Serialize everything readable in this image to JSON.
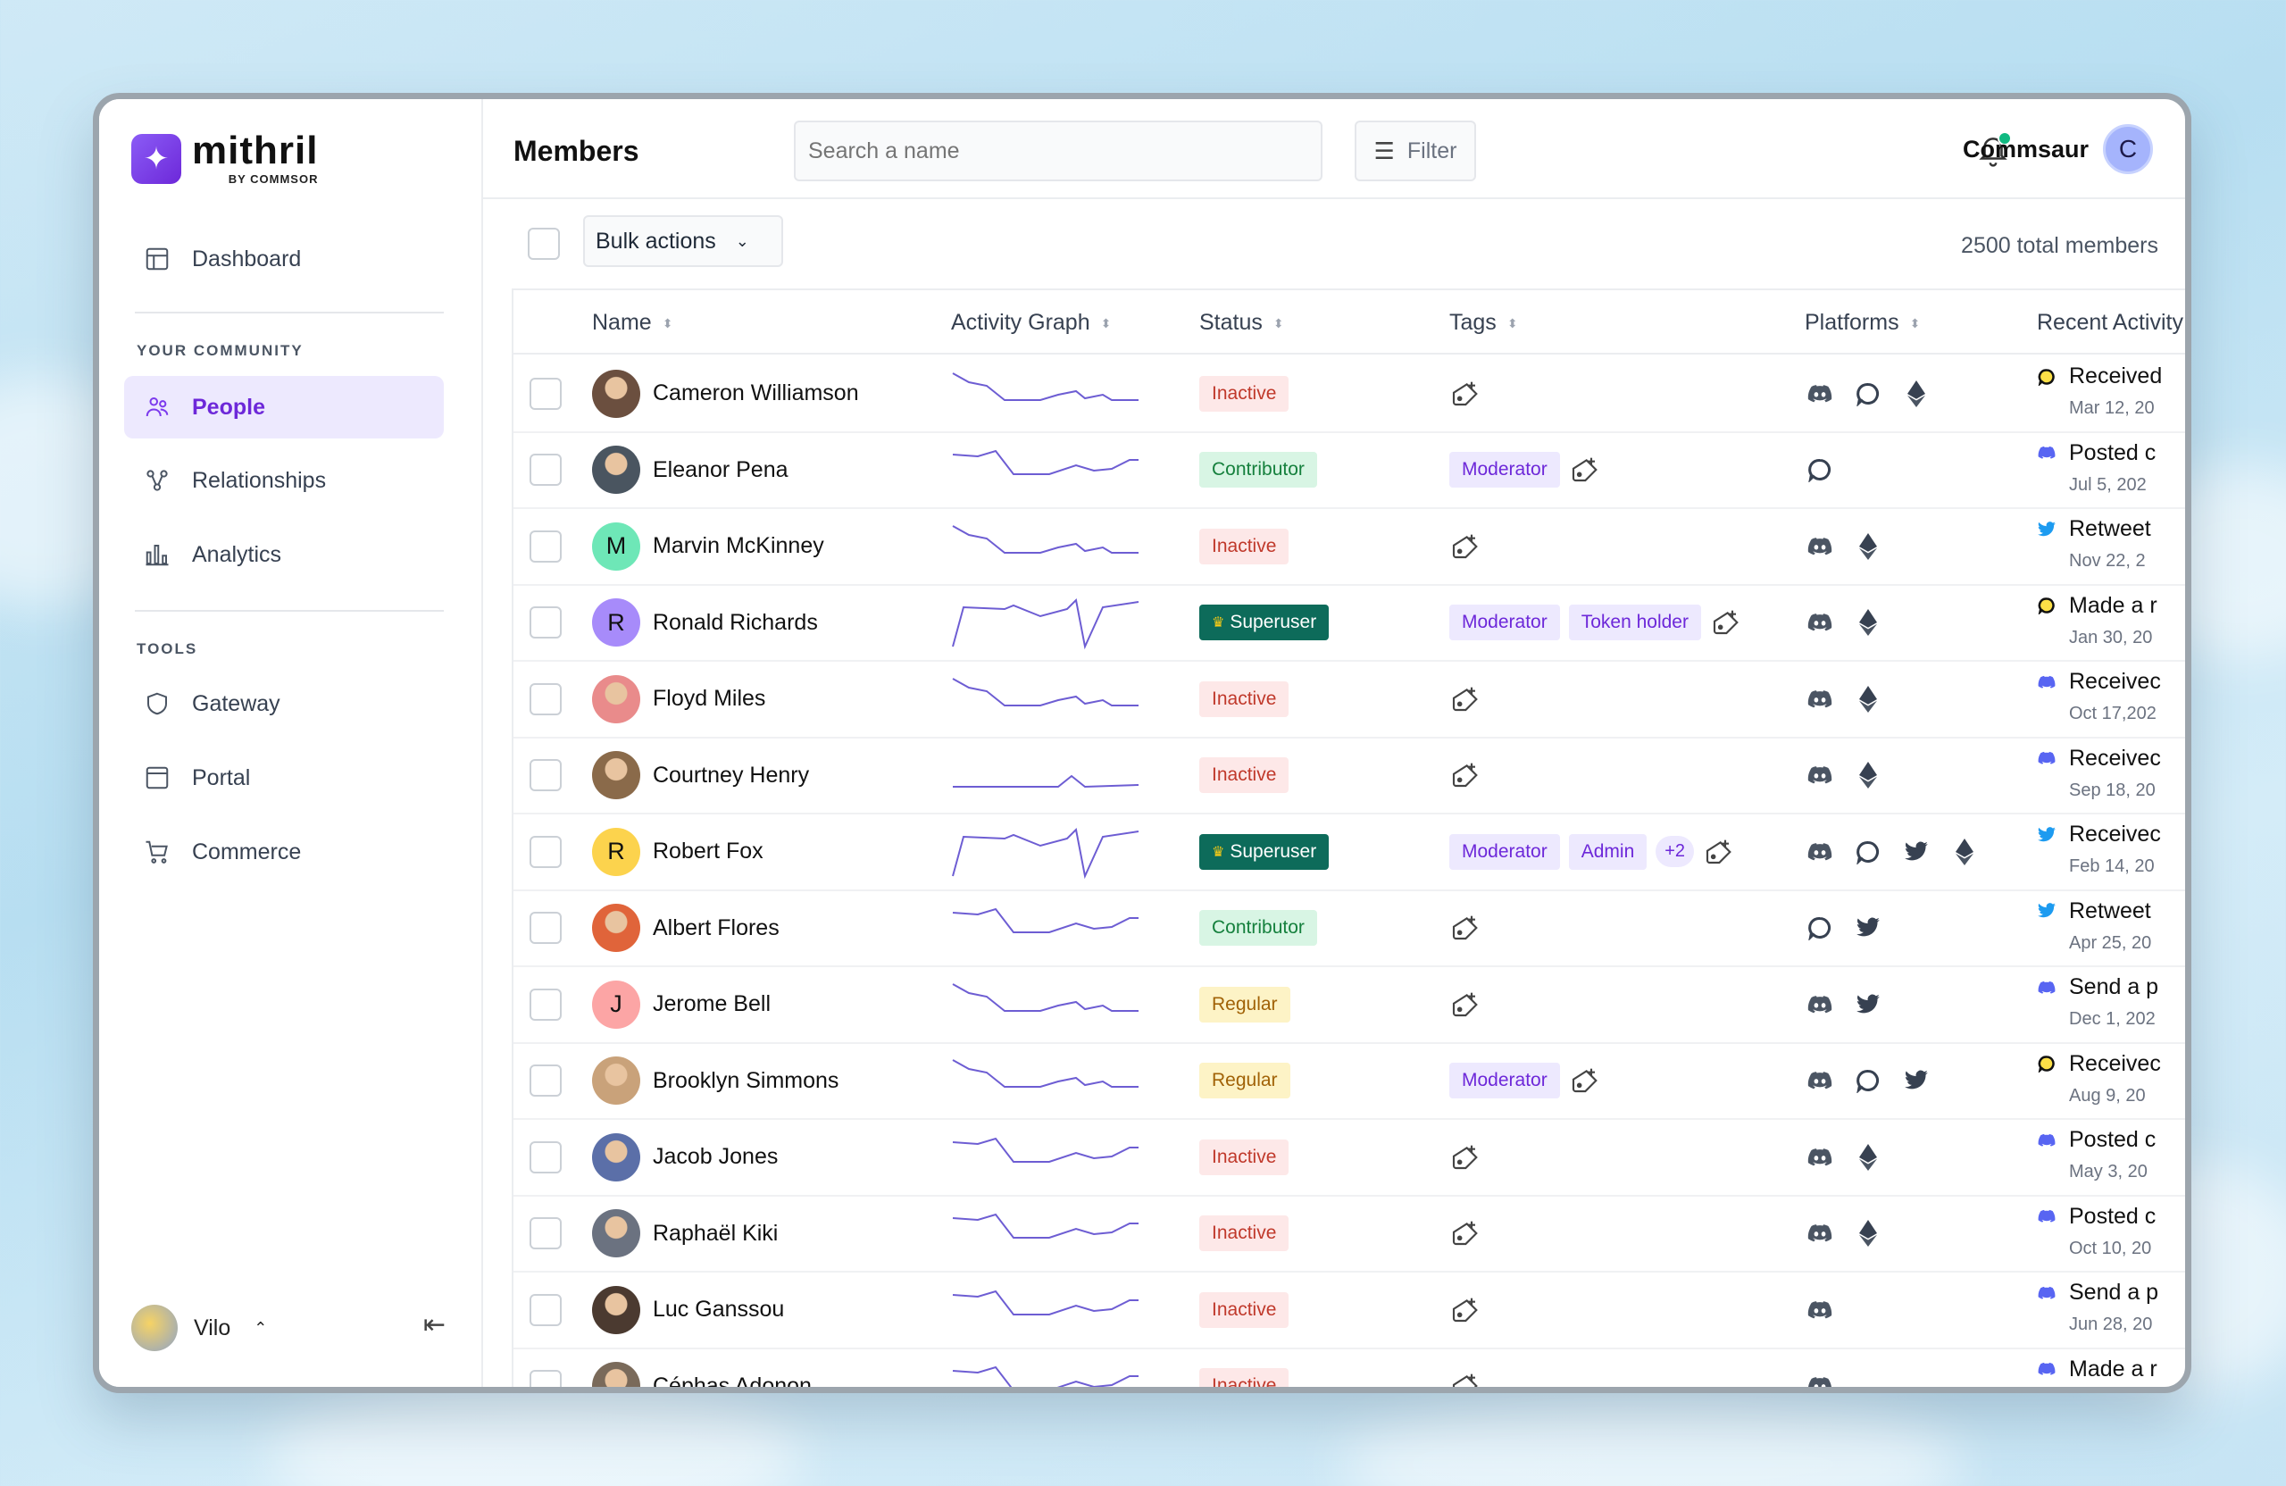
{
  "app": {
    "brand_name": "mithril",
    "brand_sub": "BY COMMSOR"
  },
  "sidebar": {
    "dashboard": "Dashboard",
    "section_community": "YOUR COMMUNITY",
    "community_items": [
      {
        "label": "People",
        "icon": "people-icon",
        "active": true
      },
      {
        "label": "Relationships",
        "icon": "relationships-icon",
        "active": false
      },
      {
        "label": "Analytics",
        "icon": "analytics-icon",
        "active": false
      }
    ],
    "section_tools": "TOOLS",
    "tool_items": [
      {
        "label": "Gateway",
        "icon": "shield-icon"
      },
      {
        "label": "Portal",
        "icon": "portal-icon"
      },
      {
        "label": "Commerce",
        "icon": "cart-icon"
      }
    ],
    "user_name": "Vilo"
  },
  "header": {
    "title": "Members",
    "search_placeholder": "Search a name",
    "filter_label": "Filter",
    "account_name": "Commsaur",
    "account_initial": "C"
  },
  "toolbar": {
    "bulk_label": "Bulk actions",
    "total_label": "2500 total members"
  },
  "table": {
    "columns": [
      "Name",
      "Activity Graph",
      "Status",
      "Tags",
      "Platforms",
      "Recent Activity"
    ],
    "rows": [
      {
        "name": "Cameron Williamson",
        "avatar": "photo",
        "avatar_color": "#6b4f3f",
        "initial": "",
        "graph": "a",
        "status": "Inactive",
        "status_type": "inactive",
        "tags": [],
        "more": "",
        "platforms": [
          "discord",
          "circle",
          "eth"
        ],
        "activity_icon": "circle",
        "activity": "Received",
        "date": "Mar 12, 20"
      },
      {
        "name": "Eleanor Pena",
        "avatar": "photo",
        "avatar_color": "#4a5560",
        "initial": "",
        "graph": "b",
        "status": "Contributor",
        "status_type": "contributor",
        "tags": [
          "Moderator"
        ],
        "more": "",
        "platforms": [
          "circle"
        ],
        "activity_icon": "discord",
        "activity": "Posted c",
        "date": "Jul 5, 202"
      },
      {
        "name": "Marvin McKinney",
        "avatar": "initial",
        "avatar_color": "#6ee7b7",
        "initial": "M",
        "graph": "a",
        "status": "Inactive",
        "status_type": "inactive",
        "tags": [],
        "more": "",
        "platforms": [
          "discord",
          "eth"
        ],
        "activity_icon": "twitter",
        "activity": "Retweet",
        "date": "Nov 22, 2"
      },
      {
        "name": "Ronald Richards",
        "avatar": "initial",
        "avatar_color": "#a78bfa",
        "initial": "R",
        "graph": "c",
        "status": "Superuser",
        "status_type": "super",
        "tags": [
          "Moderator",
          "Token holder"
        ],
        "more": "",
        "platforms": [
          "discord",
          "eth"
        ],
        "activity_icon": "circle",
        "activity": "Made a r",
        "date": "Jan 30, 20"
      },
      {
        "name": "Floyd Miles",
        "avatar": "photo",
        "avatar_color": "#e98b8b",
        "initial": "",
        "graph": "a",
        "status": "Inactive",
        "status_type": "inactive",
        "tags": [],
        "more": "",
        "platforms": [
          "discord",
          "eth"
        ],
        "activity_icon": "discord",
        "activity": "Receivec",
        "date": "Oct 17,202"
      },
      {
        "name": "Courtney Henry",
        "avatar": "photo",
        "avatar_color": "#8a6a4a",
        "initial": "",
        "graph": "d",
        "status": "Inactive",
        "status_type": "inactive",
        "tags": [],
        "more": "",
        "platforms": [
          "discord",
          "eth"
        ],
        "activity_icon": "discord",
        "activity": "Receivec",
        "date": "Sep 18, 20"
      },
      {
        "name": "Robert Fox",
        "avatar": "initial",
        "avatar_color": "#fcd34d",
        "initial": "R",
        "graph": "c",
        "status": "Superuser",
        "status_type": "super",
        "tags": [
          "Moderator",
          "Admin"
        ],
        "more": "+2",
        "platforms": [
          "discord",
          "circle",
          "twitter",
          "eth"
        ],
        "activity_icon": "twitter",
        "activity": "Receivec",
        "date": "Feb 14, 20"
      },
      {
        "name": "Albert Flores",
        "avatar": "photo",
        "avatar_color": "#e0643a",
        "initial": "",
        "graph": "b",
        "status": "Contributor",
        "status_type": "contributor",
        "tags": [],
        "more": "",
        "platforms": [
          "circle",
          "twitter"
        ],
        "activity_icon": "twitter",
        "activity": "Retweet",
        "date": "Apr 25, 20"
      },
      {
        "name": "Jerome Bell",
        "avatar": "initial",
        "avatar_color": "#fca5a5",
        "initial": "J",
        "graph": "a",
        "status": "Regular",
        "status_type": "regular",
        "tags": [],
        "more": "",
        "platforms": [
          "discord",
          "twitter"
        ],
        "activity_icon": "discord",
        "activity": "Send a p",
        "date": "Dec 1, 202"
      },
      {
        "name": "Brooklyn Simmons",
        "avatar": "photo",
        "avatar_color": "#c9a27a",
        "initial": "",
        "graph": "a",
        "status": "Regular",
        "status_type": "regular",
        "tags": [
          "Moderator"
        ],
        "more": "",
        "platforms": [
          "discord",
          "circle",
          "twitter"
        ],
        "activity_icon": "circle",
        "activity": "Receivec",
        "date": "Aug 9, 20"
      },
      {
        "name": "Jacob Jones",
        "avatar": "photo",
        "avatar_color": "#5b6fa8",
        "initial": "",
        "graph": "b",
        "status": "Inactive",
        "status_type": "inactive",
        "tags": [],
        "more": "",
        "platforms": [
          "discord",
          "eth"
        ],
        "activity_icon": "discord",
        "activity": "Posted c",
        "date": "May 3, 20"
      },
      {
        "name": "Raphaël Kiki",
        "avatar": "photo",
        "avatar_color": "#6b7280",
        "initial": "",
        "graph": "b",
        "status": "Inactive",
        "status_type": "inactive",
        "tags": [],
        "more": "",
        "platforms": [
          "discord",
          "eth"
        ],
        "activity_icon": "discord",
        "activity": "Posted c",
        "date": "Oct 10, 20"
      },
      {
        "name": "Luc Ganssou",
        "avatar": "photo",
        "avatar_color": "#4b3a30",
        "initial": "",
        "graph": "b",
        "status": "Inactive",
        "status_type": "inactive",
        "tags": [],
        "more": "",
        "platforms": [
          "discord"
        ],
        "activity_icon": "discord",
        "activity": "Send a p",
        "date": "Jun 28, 20"
      },
      {
        "name": "Céphas Adonon",
        "avatar": "photo",
        "avatar_color": "#7a6a5a",
        "initial": "",
        "graph": "b",
        "status": "Inactive",
        "status_type": "inactive",
        "tags": [],
        "more": "",
        "platforms": [
          "discord"
        ],
        "activity_icon": "discord",
        "activity": "Made a r",
        "date": ""
      }
    ]
  },
  "colors": {
    "accent": "#7c3aed",
    "graph_line": "#6d5dd3",
    "discord": "#5865f2",
    "twitter": "#1d9bf0"
  }
}
